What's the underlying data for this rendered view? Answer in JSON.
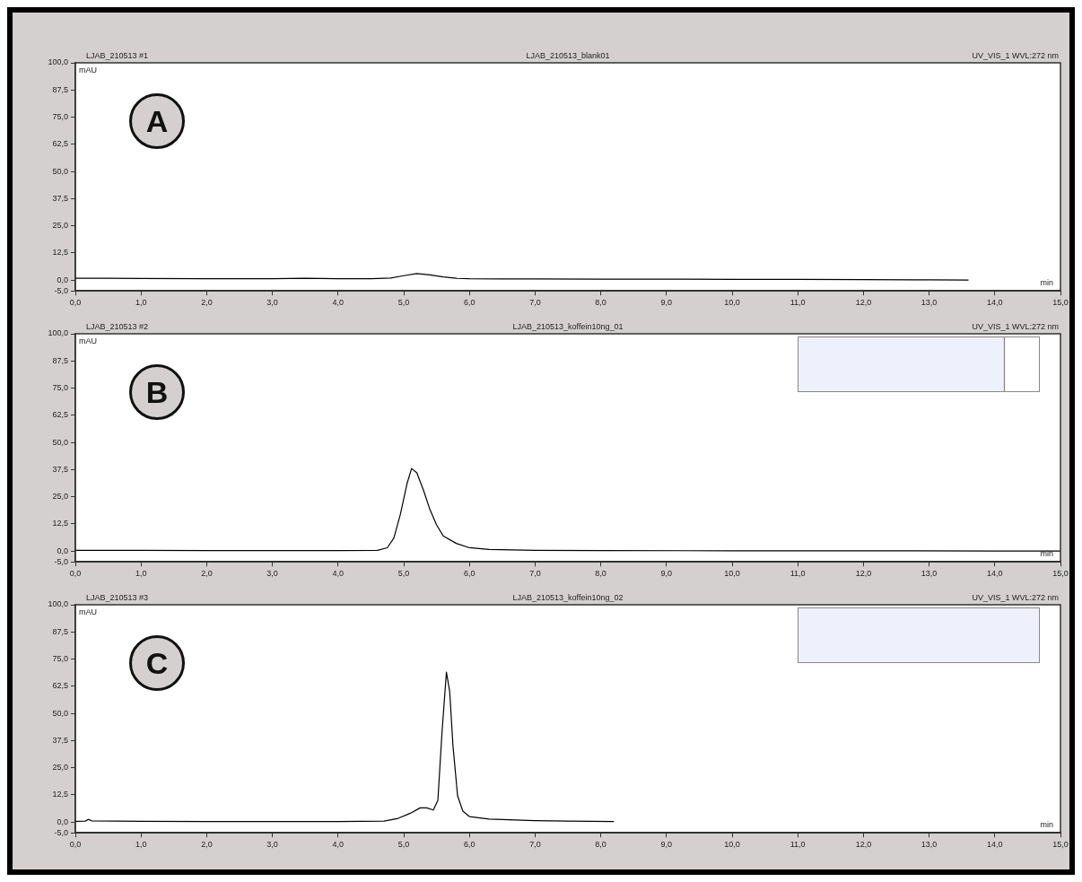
{
  "chart_data": [
    {
      "type": "line",
      "title": "LJAB_210513_blank01",
      "annotations": [
        "LJAB_210513 #1",
        "UV_VIS_1 WVL:272 nm",
        "A"
      ],
      "ylabel": "mAU",
      "xlabel": "min",
      "grid": false,
      "legend": false,
      "marker": "none",
      "line_style": "solid",
      "series": [
        {
          "color": "#000000",
          "x": [
            0,
            0.5,
            1,
            2,
            3,
            3.5,
            4,
            4.5,
            4.8,
            5.0,
            5.2,
            5.4,
            5.6,
            5.8,
            6.0,
            6.5,
            7,
            8,
            9,
            10,
            11,
            12,
            13,
            13.6
          ],
          "values": [
            0.8,
            0.8,
            0.7,
            0.6,
            0.6,
            0.8,
            0.6,
            0.6,
            0.9,
            2,
            3,
            2.4,
            1.4,
            0.8,
            0.6,
            0.5,
            0.5,
            0.4,
            0.4,
            0.3,
            0.3,
            0.2,
            0.1,
            0
          ]
        }
      ],
      "xlim": [
        0,
        15
      ],
      "xticks": [
        {
          "value": 0,
          "label": "0,0"
        },
        {
          "value": 1,
          "label": "1,0"
        },
        {
          "value": 2,
          "label": "2,0"
        },
        {
          "value": 3,
          "label": "3,0"
        },
        {
          "value": 4,
          "label": "4,0"
        },
        {
          "value": 5,
          "label": "5,0"
        },
        {
          "value": 6,
          "label": "6,0"
        },
        {
          "value": 7,
          "label": "7,0"
        },
        {
          "value": 8,
          "label": "8,0"
        },
        {
          "value": 9,
          "label": "9,0"
        },
        {
          "value": 10,
          "label": "10,0"
        },
        {
          "value": 11,
          "label": "11,0"
        },
        {
          "value": 12,
          "label": "12,0"
        },
        {
          "value": 13,
          "label": "13,0"
        },
        {
          "value": 14,
          "label": "14,0"
        },
        {
          "value": 15,
          "label": "15,0"
        }
      ],
      "ylim": [
        -5,
        100
      ],
      "yticks": [
        {
          "value": -5,
          "label": "-5,0"
        },
        {
          "value": 0,
          "label": "0,0"
        },
        {
          "value": 12.5,
          "label": "12,5"
        },
        {
          "value": 25,
          "label": "25,0"
        },
        {
          "value": 37.5,
          "label": "37,5"
        },
        {
          "value": 50,
          "label": "50,0"
        },
        {
          "value": 62.5,
          "label": "62,5"
        },
        {
          "value": 75,
          "label": "75,0"
        },
        {
          "value": 87.5,
          "label": "87,5"
        },
        {
          "value": 100,
          "label": "100,0"
        }
      ]
    },
    {
      "type": "line",
      "title": "LJAB_210513_koffein10ng_01",
      "annotations": [
        "LJAB_210513 #2",
        "UV_VIS_1 WVL:272 nm",
        "B"
      ],
      "ylabel": "mAU",
      "xlabel": "min",
      "grid": false,
      "legend": false,
      "marker": "none",
      "line_style": "solid",
      "series": [
        {
          "color": "#000000",
          "x": [
            0,
            1,
            2,
            3,
            4,
            4.6,
            4.75,
            4.85,
            4.95,
            5.05,
            5.12,
            5.2,
            5.3,
            5.4,
            5.5,
            5.6,
            5.8,
            6.0,
            6.3,
            7,
            8,
            10,
            12,
            14,
            15
          ],
          "values": [
            0.3,
            0.3,
            0.2,
            0.2,
            0.2,
            0.3,
            1.5,
            6,
            17,
            31,
            38,
            36,
            28,
            19,
            12,
            7,
            3.5,
            1.5,
            0.7,
            0.3,
            0.2,
            0.1,
            0.1,
            0,
            0
          ]
        }
      ],
      "xlim": [
        0,
        15
      ],
      "xticks": [
        {
          "value": 0,
          "label": "0,0"
        },
        {
          "value": 1,
          "label": "1,0"
        },
        {
          "value": 2,
          "label": "2,0"
        },
        {
          "value": 3,
          "label": "3,0"
        },
        {
          "value": 4,
          "label": "4,0"
        },
        {
          "value": 5,
          "label": "5,0"
        },
        {
          "value": 6,
          "label": "6,0"
        },
        {
          "value": 7,
          "label": "7,0"
        },
        {
          "value": 8,
          "label": "8,0"
        },
        {
          "value": 9,
          "label": "9,0"
        },
        {
          "value": 10,
          "label": "10,0"
        },
        {
          "value": 11,
          "label": "11,0"
        },
        {
          "value": 12,
          "label": "12,0"
        },
        {
          "value": 13,
          "label": "13,0"
        },
        {
          "value": 14,
          "label": "14,0"
        },
        {
          "value": 15,
          "label": "15,0"
        }
      ],
      "ylim": [
        -5,
        100
      ],
      "yticks": [
        {
          "value": -5,
          "label": "-5,0"
        },
        {
          "value": 0,
          "label": "0,0"
        },
        {
          "value": 12.5,
          "label": "12,5"
        },
        {
          "value": 25,
          "label": "25,0"
        },
        {
          "value": 37.5,
          "label": "37,5"
        },
        {
          "value": 50,
          "label": "50,0"
        },
        {
          "value": 62.5,
          "label": "62,5"
        },
        {
          "value": 75,
          "label": "75,0"
        },
        {
          "value": 87.5,
          "label": "87,5"
        },
        {
          "value": 100,
          "label": "100,0"
        }
      ]
    },
    {
      "type": "line",
      "title": "LJAB_210513_koffein10ng_02",
      "annotations": [
        "LJAB_210513 #3",
        "UV_VIS_1 WVL:272 nm",
        "C"
      ],
      "ylabel": "mAU",
      "xlabel": "min",
      "grid": false,
      "legend": false,
      "marker": "none",
      "line_style": "solid",
      "series": [
        {
          "color": "#000000",
          "x": [
            0,
            0.15,
            0.2,
            0.25,
            1,
            2,
            3,
            4,
            4.7,
            4.9,
            5.1,
            5.25,
            5.35,
            5.45,
            5.52,
            5.58,
            5.65,
            5.7,
            5.75,
            5.82,
            5.9,
            6.0,
            6.3,
            7,
            7.5,
            8.2
          ],
          "values": [
            0.3,
            0.4,
            1.2,
            0.5,
            0.3,
            0.2,
            0.2,
            0.2,
            0.4,
            1.5,
            4,
            6.5,
            6.5,
            5.5,
            10,
            40,
            69,
            60,
            35,
            12,
            5,
            2.5,
            1.3,
            0.6,
            0.4,
            0.2
          ]
        }
      ],
      "xlim": [
        0,
        15
      ],
      "xticks": [
        {
          "value": 0,
          "label": "0,0"
        },
        {
          "value": 1,
          "label": "1,0"
        },
        {
          "value": 2,
          "label": "2,0"
        },
        {
          "value": 3,
          "label": "3,0"
        },
        {
          "value": 4,
          "label": "4,0"
        },
        {
          "value": 5,
          "label": "5,0"
        },
        {
          "value": 6,
          "label": "6,0"
        },
        {
          "value": 7,
          "label": "7,0"
        },
        {
          "value": 8,
          "label": "8,0"
        },
        {
          "value": 9,
          "label": "9,0"
        },
        {
          "value": 10,
          "label": "10,0"
        },
        {
          "value": 11,
          "label": "11,0"
        },
        {
          "value": 12,
          "label": "12,0"
        },
        {
          "value": 13,
          "label": "13,0"
        },
        {
          "value": 14,
          "label": "14,0"
        },
        {
          "value": 15,
          "label": "15,0"
        }
      ],
      "ylim": [
        -5,
        100
      ],
      "yticks": [
        {
          "value": -5,
          "label": "-5,0"
        },
        {
          "value": 0,
          "label": "0,0"
        },
        {
          "value": 12.5,
          "label": "12,5"
        },
        {
          "value": 25,
          "label": "25,0"
        },
        {
          "value": 37.5,
          "label": "37,5"
        },
        {
          "value": 50,
          "label": "50,0"
        },
        {
          "value": 62.5,
          "label": "62,5"
        },
        {
          "value": 75,
          "label": "75,0"
        },
        {
          "value": 87.5,
          "label": "87,5"
        },
        {
          "value": 100,
          "label": "100,0"
        }
      ]
    }
  ]
}
